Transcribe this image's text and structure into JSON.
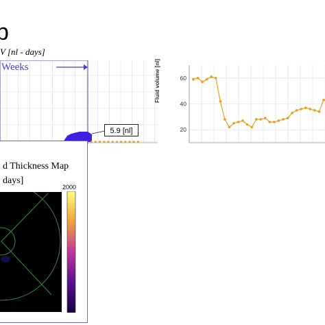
{
  "header": {
    "big_letter": "b",
    "subtitle": "V [nl - days]"
  },
  "timeline_chart": {
    "weeks_label": "Weeks",
    "callout_value": "5.9 [nl]",
    "colors": {
      "marker": "#e6a020",
      "fill": "#3f1fe0",
      "frame": "#6f63c9",
      "grid": "#d8d8d8"
    }
  },
  "thickness_map": {
    "title_line_1": "d Thickness Map",
    "title_line_2": "days]",
    "colorbar_max": "2000",
    "colors": {
      "background": "#000000",
      "overlay": "#3a8a3a",
      "bar_top": "#ffff80",
      "bar_mid": "#c0389c",
      "bar_bottom": "#1a0044"
    }
  },
  "chart_data": {
    "type": "line",
    "title": "",
    "xlabel": "",
    "ylabel": "Fluid volume [nl]",
    "ylim": [
      10,
      70
    ],
    "yticks": [
      "20",
      "40",
      "60"
    ],
    "grid": true,
    "series": [
      {
        "values": [
          59,
          60,
          57,
          59,
          61,
          60,
          42,
          28,
          22,
          25,
          26,
          27,
          24,
          22,
          28,
          28,
          29,
          26,
          26,
          27,
          28,
          29,
          33,
          35,
          36,
          37,
          36,
          35,
          34,
          43
        ],
        "color": "#e6a020"
      }
    ]
  }
}
